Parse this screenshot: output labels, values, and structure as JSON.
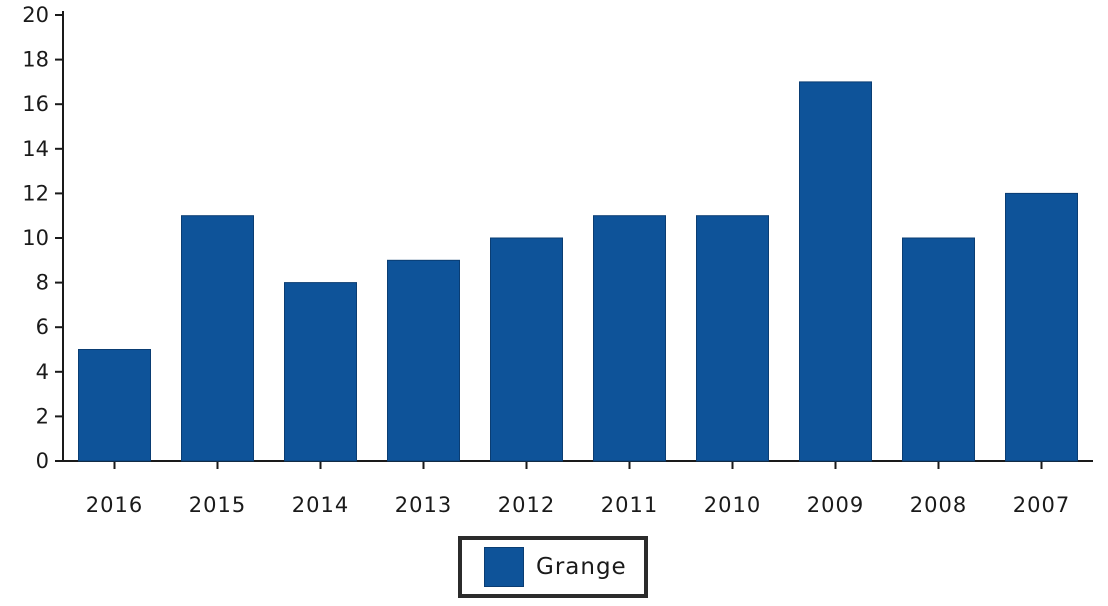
{
  "chart_data": {
    "type": "bar",
    "title": "",
    "xlabel": "",
    "ylabel": "",
    "categories": [
      "2016",
      "2015",
      "2014",
      "2013",
      "2012",
      "2011",
      "2010",
      "2009",
      "2008",
      "2007"
    ],
    "series": [
      {
        "name": "Grange",
        "color": "#0e5399",
        "values": [
          5,
          11,
          8,
          9,
          10,
          11,
          11,
          17,
          10,
          12
        ]
      }
    ],
    "ylim": [
      0,
      20
    ],
    "yticks": [
      0,
      2,
      4,
      6,
      8,
      10,
      12,
      14,
      16,
      18,
      20
    ],
    "grid": false,
    "legend_position": "bottom-center"
  },
  "legend": {
    "label": "Grange",
    "color": "#0e5399"
  }
}
